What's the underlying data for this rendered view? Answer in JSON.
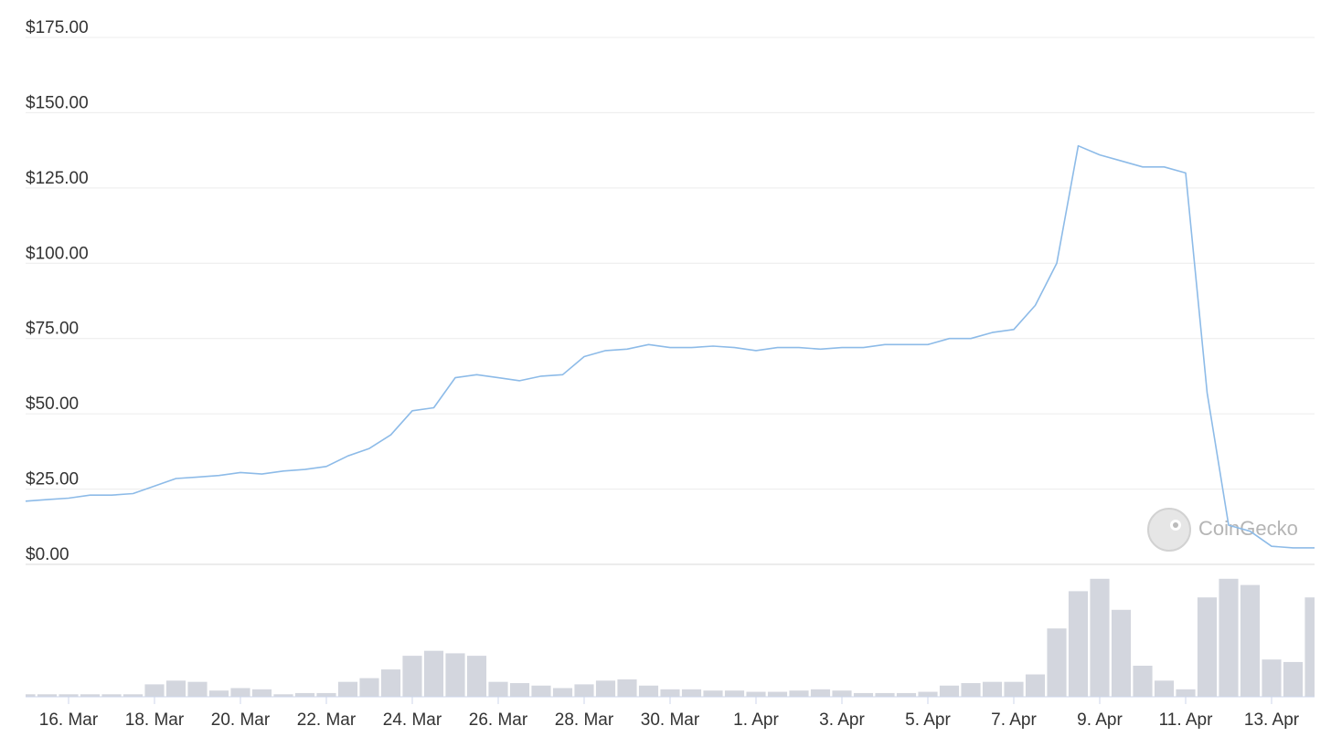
{
  "chart_data": [
    {
      "type": "line",
      "color": "#8dbbe8",
      "grid": true,
      "categories": [
        null,
        null,
        "16. Mar",
        null,
        null,
        null,
        "18. Mar",
        null,
        null,
        null,
        "20. Mar",
        null,
        null,
        null,
        "22. Mar",
        null,
        null,
        null,
        "24. Mar",
        null,
        null,
        null,
        "26. Mar",
        null,
        null,
        null,
        "28. Mar",
        null,
        null,
        null,
        "30. Mar",
        null,
        null,
        null,
        "1. Apr",
        null,
        null,
        null,
        "3. Apr",
        null,
        null,
        null,
        "5. Apr",
        null,
        null,
        null,
        "7. Apr",
        null,
        null,
        null,
        "9. Apr",
        null,
        null,
        null,
        "11. Apr",
        null,
        null,
        null,
        "13. Apr",
        null,
        null
      ],
      "values": [
        21,
        21.5,
        22,
        23,
        23,
        23.5,
        26,
        28.5,
        29,
        29.5,
        30.5,
        30,
        31,
        31.5,
        32.5,
        36,
        38.5,
        43,
        51,
        52,
        62,
        63,
        62,
        61,
        62.5,
        63,
        69,
        71,
        71.5,
        73,
        72,
        72,
        72.5,
        72,
        71,
        72,
        72,
        71.5,
        72,
        72,
        73,
        73,
        73,
        75,
        75,
        77,
        78,
        86,
        100,
        139,
        136,
        134,
        132,
        132,
        130,
        57,
        13,
        11,
        6,
        5.5,
        5.5
      ],
      "ylim": [
        0,
        175
      ],
      "yticks": [
        {
          "value": 0,
          "label": "$0.00"
        },
        {
          "value": 25,
          "label": "$25.00"
        },
        {
          "value": 50,
          "label": "$50.00"
        },
        {
          "value": 75,
          "label": "$75.00"
        },
        {
          "value": 100,
          "label": "$100.00"
        },
        {
          "value": 125,
          "label": "$125.00"
        },
        {
          "value": 150,
          "label": "$150.00"
        },
        {
          "value": 175,
          "label": "$175.00"
        }
      ]
    },
    {
      "type": "bar",
      "color": "#d3d6de",
      "ylim": [
        0,
        100
      ],
      "values": [
        2,
        2,
        2,
        2,
        2,
        2,
        10,
        13,
        12,
        5,
        7,
        6,
        2,
        3,
        3,
        12,
        15,
        22,
        33,
        37,
        35,
        33,
        12,
        11,
        9,
        7,
        10,
        13,
        14,
        9,
        6,
        6,
        5,
        5,
        4,
        4,
        5,
        6,
        5,
        3,
        3,
        3,
        4,
        9,
        11,
        12,
        12,
        18,
        55,
        85,
        95,
        70,
        25,
        13,
        6,
        80,
        95,
        90,
        30,
        28,
        80
      ]
    }
  ],
  "watermark": "CoinGecko"
}
